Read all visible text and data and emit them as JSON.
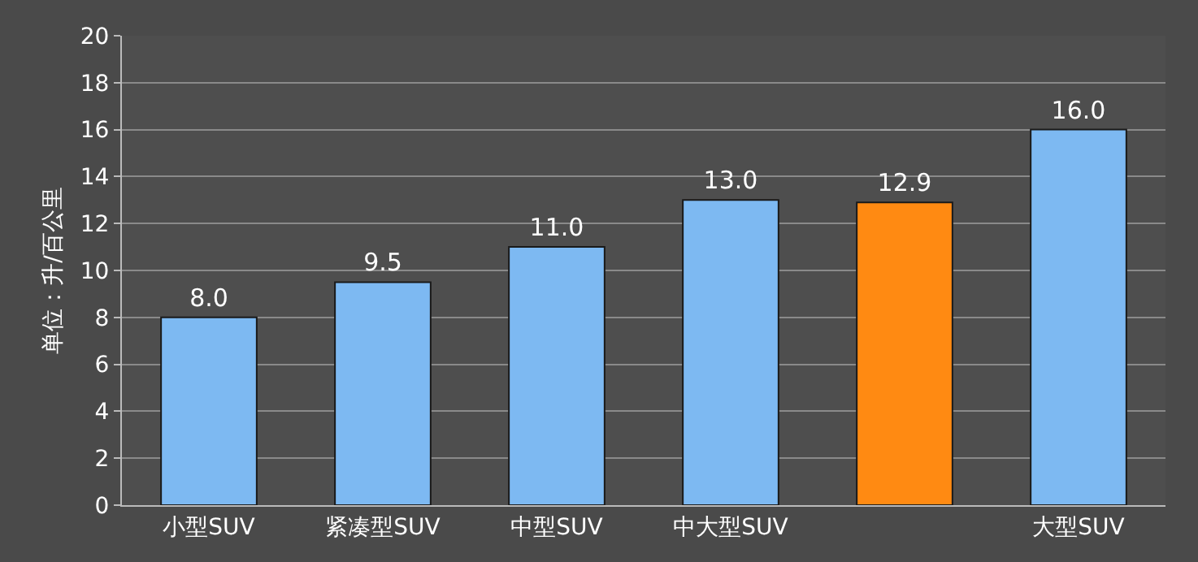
{
  "chart_data": {
    "type": "bar",
    "ylabel": "单位：升/百公里",
    "categories": [
      "小型SUV",
      "紧凑型SUV",
      "中型SUV",
      "中大型SUV",
      null,
      "大型SUV"
    ],
    "values": [
      8.0,
      9.5,
      11.0,
      13.0,
      12.9,
      16.0
    ],
    "colors": [
      "#7db9f2",
      "#7db9f2",
      "#7db9f2",
      "#7db9f2",
      "#ff8a12",
      "#7db9f2"
    ],
    "value_labels": [
      "8.0",
      "9.5",
      "11.0",
      "13.0",
      "12.9",
      "16.0"
    ],
    "ylim": [
      0,
      20
    ],
    "yticks": [
      0,
      2,
      4,
      6,
      8,
      10,
      12,
      14,
      16,
      18,
      20
    ],
    "grid": "y"
  }
}
